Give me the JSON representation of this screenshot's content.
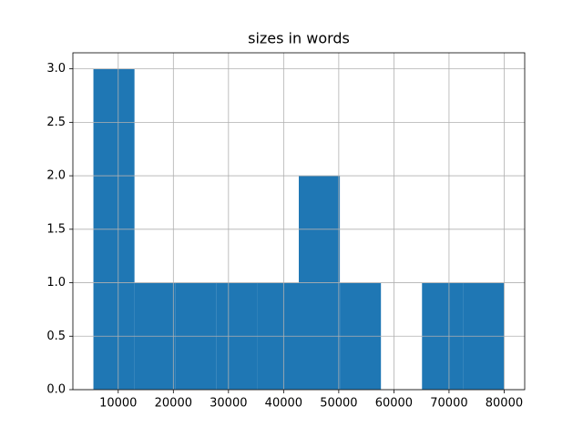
{
  "chart_data": {
    "type": "histogram",
    "title": "sizes in words",
    "bins": [
      5500,
      12950,
      20400,
      27850,
      35300,
      42750,
      50200,
      57650,
      65100,
      72550,
      80000
    ],
    "counts": [
      3,
      1,
      1,
      1,
      1,
      2,
      1,
      0,
      1,
      1
    ],
    "color": "#1f77b4",
    "xlim": [
      1775,
      83725
    ],
    "xticks": [
      10000,
      20000,
      30000,
      40000,
      50000,
      60000,
      70000,
      80000
    ],
    "ylim": [
      0,
      3.15
    ],
    "yticks": [
      {
        "value": 0,
        "label": "0.0"
      },
      0.5,
      {
        "value": 1,
        "label": "1.0"
      },
      1.5,
      {
        "value": 2,
        "label": "2.0"
      },
      2.5,
      {
        "value": 3,
        "label": "3.0"
      }
    ],
    "grid": true
  }
}
